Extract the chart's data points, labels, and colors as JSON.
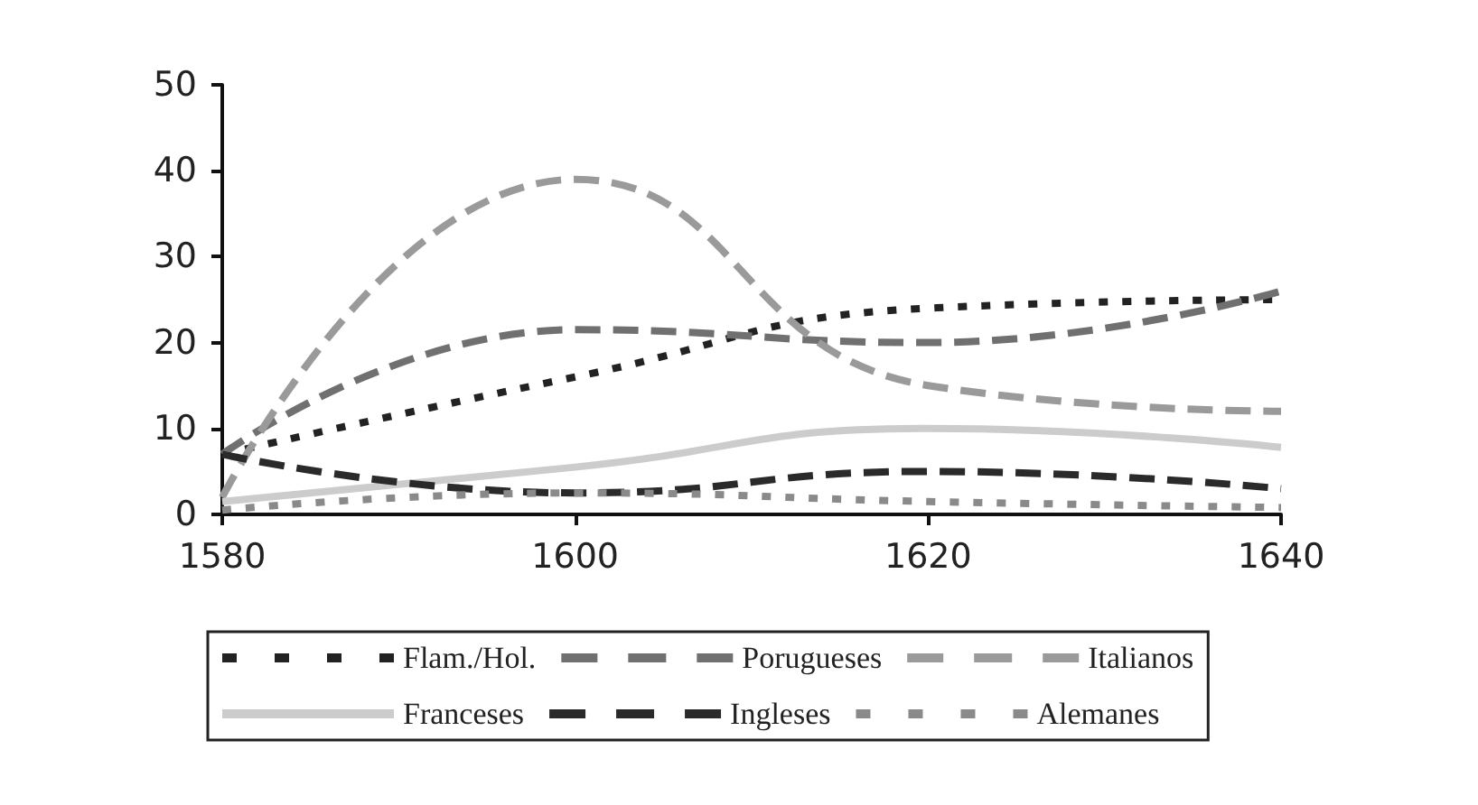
{
  "chart_data": {
    "type": "line",
    "x": [
      1580,
      1600,
      1620,
      1640
    ],
    "series": [
      {
        "name": "Flam./Hol.",
        "color": "#222222",
        "line_style": "dotted",
        "values": [
          7,
          16,
          24,
          25
        ]
      },
      {
        "name": "Porugueses",
        "color": "#707070",
        "line_style": "dashed",
        "values": [
          7,
          21.5,
          20,
          26
        ]
      },
      {
        "name": "Italianos",
        "color": "#9a9a9a",
        "line_style": "dashed",
        "values": [
          2,
          39,
          15,
          12
        ]
      },
      {
        "name": "Franceses",
        "color": "#cccccc",
        "line_style": "solid",
        "values": [
          1.5,
          5.5,
          10,
          7.8
        ]
      },
      {
        "name": "Ingleses",
        "color": "#2a2a2a",
        "line_style": "dashed",
        "values": [
          7,
          2.5,
          5,
          3
        ]
      },
      {
        "name": "Alemanes",
        "color": "#8a8a8a",
        "line_style": "dotted",
        "values": [
          0.5,
          2.5,
          1.5,
          0.8
        ]
      }
    ],
    "xlim": [
      1580,
      1640
    ],
    "xticks": [
      1580,
      1600,
      1620,
      1640
    ],
    "ylim": [
      0,
      50
    ],
    "yticks": [
      0,
      10,
      20,
      30,
      40,
      50
    ],
    "grid": false,
    "legend": "bottom",
    "marker": "none"
  }
}
